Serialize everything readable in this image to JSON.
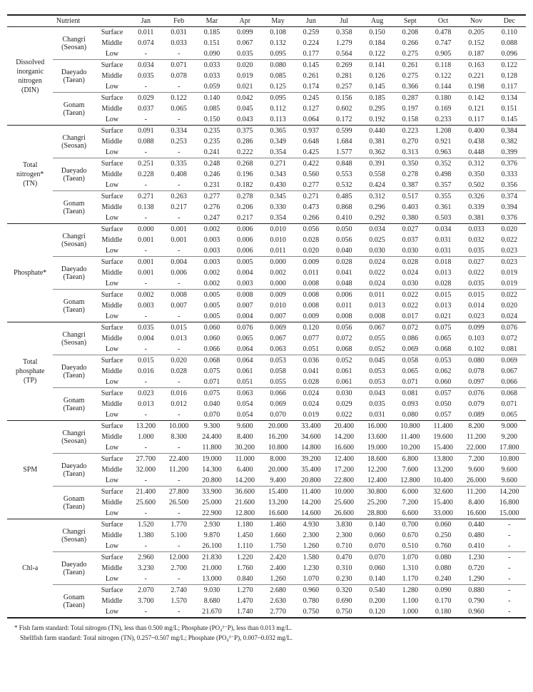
{
  "months": [
    "Jan",
    "Feb",
    "Mar",
    "Apr",
    "May",
    "Jun",
    "Jul",
    "Aug",
    "Sept",
    "Oct",
    "Nov",
    "Dec"
  ],
  "nutrient_header": "Nutrient",
  "sites": [
    {
      "name": "Changri",
      "sub": "(Seosan)"
    },
    {
      "name": "Daeyado",
      "sub": "(Taean)"
    },
    {
      "name": "Gonam",
      "sub": "(Taean)"
    }
  ],
  "depths": [
    "Surface",
    "Middle",
    "Low"
  ],
  "nutrients": [
    {
      "label": "Dissolved\ninorganic\nnitrogen\n(DIN)"
    },
    {
      "label": "Total\nnitrogen*\n(TN)"
    },
    {
      "label": "Phosphate*"
    },
    {
      "label": "Total\nphosphate\n(TP)"
    },
    {
      "label": "SPM"
    },
    {
      "label": "Chl-a"
    }
  ],
  "table_style": {
    "font_family": "Times New Roman",
    "font_size_pt": 8,
    "border_color": "#222222",
    "background_color": "#ffffff",
    "text_color": "#222222"
  },
  "data": {
    "DIN": {
      "Changri": {
        "Surface": [
          "0.011",
          "0.031",
          "0.185",
          "0.099",
          "0.108",
          "0.259",
          "0.358",
          "0.150",
          "0.208",
          "0.478",
          "0.205",
          "0.110"
        ],
        "Middle": [
          "0.074",
          "0.033",
          "0.151",
          "0.067",
          "0.132",
          "0.224",
          "1.279",
          "0.184",
          "0.266",
          "0.747",
          "0.152",
          "0.088"
        ],
        "Low": [
          "-",
          "-",
          "0.090",
          "0.035",
          "0.095",
          "0.177",
          "0.564",
          "0.122",
          "0.275",
          "0.905",
          "0.187",
          "0.096"
        ]
      },
      "Daeyado": {
        "Surface": [
          "0.034",
          "0.071",
          "0.033",
          "0.020",
          "0.080",
          "0.145",
          "0.269",
          "0.141",
          "0.261",
          "0.118",
          "0.163",
          "0.122"
        ],
        "Middle": [
          "0.035",
          "0.078",
          "0.033",
          "0.019",
          "0.085",
          "0.261",
          "0.281",
          "0.126",
          "0.275",
          "0.122",
          "0.221",
          "0.128"
        ],
        "Low": [
          "-",
          "-",
          "0.059",
          "0.021",
          "0.125",
          "0.174",
          "0.257",
          "0.145",
          "0.366",
          "0.144",
          "0.198",
          "0.117"
        ]
      },
      "Gonam": {
        "Surface": [
          "0.029",
          "0.122",
          "0.140",
          "0.042",
          "0.095",
          "0.245",
          "0.156",
          "0.185",
          "0.287",
          "0.180",
          "0.142",
          "0.134"
        ],
        "Middle": [
          "0.037",
          "0.065",
          "0.085",
          "0.045",
          "0.112",
          "0.127",
          "0.602",
          "0.295",
          "0.197",
          "0.169",
          "0.121",
          "0.151"
        ],
        "Low": [
          "-",
          "-",
          "0.150",
          "0.043",
          "0.113",
          "0.064",
          "0.172",
          "0.192",
          "0.158",
          "0.233",
          "0.117",
          "0.145"
        ]
      }
    },
    "TN": {
      "Changri": {
        "Surface": [
          "0.091",
          "0.334",
          "0.235",
          "0.375",
          "0.365",
          "0.937",
          "0.599",
          "0.440",
          "0.223",
          "1.208",
          "0.400",
          "0.384"
        ],
        "Middle": [
          "0.088",
          "0.253",
          "0.235",
          "0.286",
          "0.349",
          "0.648",
          "1.684",
          "0.381",
          "0.270",
          "0.921",
          "0.438",
          "0.382"
        ],
        "Low": [
          "-",
          "-",
          "0.241",
          "0.222",
          "0.354",
          "0.425",
          "1.577",
          "0.362",
          "0.313",
          "0.963",
          "0.448",
          "0.399"
        ]
      },
      "Daeyado": {
        "Surface": [
          "0.251",
          "0.335",
          "0.248",
          "0.268",
          "0.271",
          "0.422",
          "0.848",
          "0.391",
          "0.350",
          "0.352",
          "0.312",
          "0.376"
        ],
        "Middle": [
          "0.228",
          "0.408",
          "0.246",
          "0.196",
          "0.343",
          "0.560",
          "0.553",
          "0.558",
          "0.278",
          "0.498",
          "0.350",
          "0.333"
        ],
        "Low": [
          "-",
          "-",
          "0.231",
          "0.182",
          "0.430",
          "0.277",
          "0.532",
          "0.424",
          "0.387",
          "0.357",
          "0.502",
          "0.356"
        ]
      },
      "Gonam": {
        "Surface": [
          "0.271",
          "0.263",
          "0.277",
          "0.278",
          "0.345",
          "0.271",
          "0.485",
          "0.312",
          "0.517",
          "0.355",
          "0.326",
          "0.374"
        ],
        "Middle": [
          "0.138",
          "0.217",
          "0.276",
          "0.206",
          "0.330",
          "0.473",
          "0.868",
          "0.296",
          "0.403",
          "0.361",
          "0.339",
          "0.394"
        ],
        "Low": [
          "-",
          "-",
          "0.247",
          "0.217",
          "0.354",
          "0.266",
          "0.410",
          "0.292",
          "0.380",
          "0.503",
          "0.381",
          "0.376"
        ]
      }
    },
    "Phosphate": {
      "Changri": {
        "Surface": [
          "0.000",
          "0.001",
          "0.002",
          "0.006",
          "0.010",
          "0.056",
          "0.050",
          "0.034",
          "0.027",
          "0.034",
          "0.033",
          "0.020"
        ],
        "Middle": [
          "0.001",
          "0.001",
          "0.003",
          "0.006",
          "0.010",
          "0.028",
          "0.056",
          "0.025",
          "0.037",
          "0.031",
          "0.032",
          "0.022"
        ],
        "Low": [
          "-",
          "-",
          "0.003",
          "0.006",
          "0.011",
          "0.020",
          "0.040",
          "0.030",
          "0.030",
          "0.031",
          "0.035",
          "0.023"
        ]
      },
      "Daeyado": {
        "Surface": [
          "0.001",
          "0.004",
          "0.003",
          "0.005",
          "0.000",
          "0.009",
          "0.028",
          "0.024",
          "0.028",
          "0.018",
          "0.027",
          "0.023"
        ],
        "Middle": [
          "0.001",
          "0.006",
          "0.002",
          "0.004",
          "0.002",
          "0.011",
          "0.041",
          "0.022",
          "0.024",
          "0.013",
          "0.022",
          "0.019"
        ],
        "Low": [
          "-",
          "-",
          "0.002",
          "0.003",
          "0.000",
          "0.008",
          "0.048",
          "0.024",
          "0.030",
          "0.028",
          "0.035",
          "0.019"
        ]
      },
      "Gonam": {
        "Surface": [
          "0.002",
          "0.008",
          "0.005",
          "0.008",
          "0.009",
          "0.008",
          "0.006",
          "0.011",
          "0.022",
          "0.015",
          "0.015",
          "0.022"
        ],
        "Middle": [
          "0.003",
          "0.007",
          "0.005",
          "0.007",
          "0.010",
          "0.008",
          "0.011",
          "0.013",
          "0.022",
          "0.013",
          "0.014",
          "0.020"
        ],
        "Low": [
          "-",
          "-",
          "0.005",
          "0.004",
          "0.007",
          "0.009",
          "0.008",
          "0.008",
          "0.017",
          "0.021",
          "0.023",
          "0.024"
        ]
      }
    },
    "TP": {
      "Changri": {
        "Surface": [
          "0.035",
          "0.015",
          "0.060",
          "0.076",
          "0.069",
          "0.120",
          "0.056",
          "0.067",
          "0.072",
          "0.075",
          "0.099",
          "0.076"
        ],
        "Middle": [
          "0.004",
          "0.013",
          "0.060",
          "0.065",
          "0.067",
          "0.077",
          "0.072",
          "0.055",
          "0.086",
          "0.065",
          "0.103",
          "0.072"
        ],
        "Low": [
          "-",
          "-",
          "0.066",
          "0.064",
          "0.063",
          "0.051",
          "0.068",
          "0.052",
          "0.069",
          "0.068",
          "0.102",
          "0.081"
        ]
      },
      "Daeyado": {
        "Surface": [
          "0.015",
          "0.020",
          "0.068",
          "0.064",
          "0.053",
          "0.036",
          "0.052",
          "0.045",
          "0.058",
          "0.053",
          "0.080",
          "0.069"
        ],
        "Middle": [
          "0.016",
          "0.028",
          "0.075",
          "0.061",
          "0.058",
          "0.041",
          "0.061",
          "0.053",
          "0.065",
          "0.062",
          "0.078",
          "0.067"
        ],
        "Low": [
          "-",
          "-",
          "0.071",
          "0.051",
          "0.055",
          "0.028",
          "0.061",
          "0.053",
          "0.071",
          "0.060",
          "0.097",
          "0.066"
        ]
      },
      "Gonam": {
        "Surface": [
          "0.023",
          "0.016",
          "0.075",
          "0.063",
          "0.066",
          "0.024",
          "0.030",
          "0.043",
          "0.081",
          "0.057",
          "0.076",
          "0.068"
        ],
        "Middle": [
          "0.013",
          "0.012",
          "0.040",
          "0.054",
          "0.069",
          "0.024",
          "0.029",
          "0.035",
          "0.093",
          "0.050",
          "0.079",
          "0.071"
        ],
        "Low": [
          "-",
          "-",
          "0.070",
          "0.054",
          "0.070",
          "0.019",
          "0.022",
          "0.031",
          "0.080",
          "0.057",
          "0.089",
          "0.065"
        ]
      }
    },
    "SPM": {
      "Changri": {
        "Surface": [
          "13.200",
          "10.000",
          "9.300",
          "9.600",
          "20.000",
          "33.400",
          "20.400",
          "16.000",
          "10.800",
          "11.400",
          "8.200",
          "9.000"
        ],
        "Middle": [
          "1.000",
          "8.300",
          "24.400",
          "8.400",
          "16.200",
          "34.600",
          "14.200",
          "13.600",
          "11.400",
          "19.600",
          "11.200",
          "9.200"
        ],
        "Low": [
          "-",
          "-",
          "11.800",
          "30.200",
          "10.800",
          "14.800",
          "16.600",
          "19.000",
          "10.200",
          "15.400",
          "22.000",
          "17.800"
        ]
      },
      "Daeyado": {
        "Surface": [
          "27.700",
          "22.400",
          "19.000",
          "11.000",
          "8.000",
          "39.200",
          "12.400",
          "18.600",
          "6.800",
          "13.800",
          "7.200",
          "10.800"
        ],
        "Middle": [
          "32.000",
          "11.200",
          "14.300",
          "6.400",
          "20.000",
          "35.400",
          "17.200",
          "12.200",
          "7.600",
          "13.200",
          "9.600",
          "9.600"
        ],
        "Low": [
          "-",
          "-",
          "20.800",
          "14.200",
          "9.400",
          "20.800",
          "22.800",
          "12.400",
          "12.800",
          "10.400",
          "26.000",
          "9.600"
        ]
      },
      "Gonam": {
        "Surface": [
          "21.400",
          "27.800",
          "33.900",
          "36.600",
          "15.400",
          "11.400",
          "10.000",
          "30.800",
          "6.000",
          "32.600",
          "11.200",
          "14.200"
        ],
        "Middle": [
          "25.600",
          "26.500",
          "25.000",
          "21.600",
          "13.200",
          "14.200",
          "25.600",
          "25.200",
          "7.200",
          "15.400",
          "8.400",
          "16.800"
        ],
        "Low": [
          "-",
          "-",
          "22.900",
          "12.800",
          "16.600",
          "14.600",
          "26.600",
          "28.800",
          "6.600",
          "33.000",
          "16.600",
          "15.000"
        ]
      }
    },
    "Chla": {
      "Changri": {
        "Surface": [
          "1.520",
          "1.770",
          "2.930",
          "1.180",
          "1.460",
          "4.930",
          "3.830",
          "0.140",
          "0.700",
          "0.060",
          "0.440",
          "-"
        ],
        "Middle": [
          "1.380",
          "5.100",
          "9.870",
          "1.450",
          "1.660",
          "2.300",
          "2.300",
          "0.060",
          "0.670",
          "0.250",
          "0.480",
          "-"
        ],
        "Low": [
          "-",
          "-",
          "26.100",
          "1.110",
          "1.750",
          "1.260",
          "0.710",
          "0.070",
          "0.510",
          "0.760",
          "0.410",
          "-"
        ]
      },
      "Daeyado": {
        "Surface": [
          "2.960",
          "12.000",
          "21.830",
          "1.220",
          "2.420",
          "1.580",
          "0.470",
          "0.070",
          "1.070",
          "0.080",
          "1.230",
          "-"
        ],
        "Middle": [
          "3.230",
          "2.700",
          "21.000",
          "1.760",
          "2.400",
          "1.230",
          "0.310",
          "0.060",
          "1.310",
          "0.080",
          "0.720",
          "-"
        ],
        "Low": [
          "-",
          "-",
          "13.000",
          "0.840",
          "1.260",
          "1.070",
          "0.230",
          "0.140",
          "1.170",
          "0.240",
          "1.290",
          "-"
        ]
      },
      "Gonam": {
        "Surface": [
          "2.070",
          "2.740",
          "9.030",
          "1.270",
          "2.680",
          "0.960",
          "0.320",
          "0.540",
          "1.280",
          "0.090",
          "0.880",
          "-"
        ],
        "Middle": [
          "3.700",
          "1.570",
          "8.680",
          "1.470",
          "2.630",
          "0.780",
          "0.690",
          "0.200",
          "1.100",
          "0.170",
          "0.790",
          "-"
        ],
        "Low": [
          "-",
          "-",
          "21.670",
          "1.740",
          "2.770",
          "0.750",
          "0.750",
          "0.120",
          "1.000",
          "0.180",
          "0.960",
          "-"
        ]
      }
    }
  },
  "footnotes": {
    "f1": "* Fish farm standard: Total nitrogen (TN), less than 0.500 mg/L; Phosphate (PO₄³⁻P), less than 0.013 mg/L.",
    "f2": "Shellfish farm standard: Total nitrogen (TN), 0.257~0.507 mg/L; Phosphate (PO₄³⁻P), 0.007~0.032 mg/L."
  }
}
